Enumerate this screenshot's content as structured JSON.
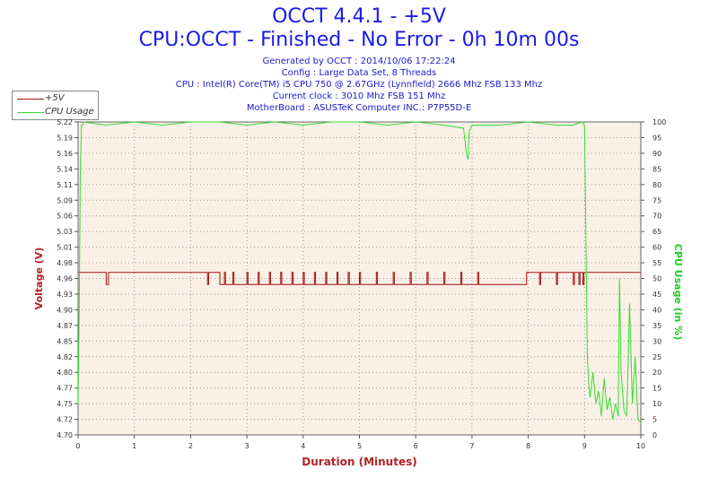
{
  "header": {
    "title": "OCCT 4.4.1 - +5V",
    "subtitle": "CPU:OCCT - Finished - No Error - 0h 10m 00s",
    "info_lines": [
      "Generated by OCCT : 2014/10/06 17:22:24",
      "Config : Large Data Set, 8 Threads",
      "CPU : Intel(R) Core(TM) i5 CPU 750 @ 2.67GHz (Lynnfield) 2666 Mhz FSB 133 Mhz",
      "Current clock : 3010 Mhz FSB 151 Mhz",
      "MotherBoard : ASUSTeK Computer INC.: P7P55D-E"
    ]
  },
  "legend": [
    {
      "label": "+5V",
      "color": "#a01010"
    },
    {
      "label": "CPU Usage",
      "color": "#33dd33"
    }
  ],
  "chart_data": {
    "type": "line",
    "xlabel": "Duration (Minutes)",
    "ylabel": "Voltage (V)",
    "y2label": "CPU Usage (in %)",
    "xlim": [
      0,
      10
    ],
    "ylim": [
      4.7,
      5.22
    ],
    "y2lim": [
      0,
      100
    ],
    "x_ticks": [
      "0",
      "1",
      "2",
      "3",
      "4",
      "5",
      "6",
      "7",
      "8",
      "9",
      "10"
    ],
    "y_ticks": [
      "4.70",
      "4.72",
      "4.75",
      "4.77",
      "4.80",
      "4.82",
      "4.85",
      "4.87",
      "4.90",
      "4.93",
      "4.96",
      "4.98",
      "5.01",
      "5.03",
      "5.06",
      "5.09",
      "5.11",
      "5.14",
      "5.16",
      "5.19",
      "5.22"
    ],
    "y2_ticks": [
      "0",
      "5",
      "10",
      "15",
      "20",
      "25",
      "30",
      "35",
      "40",
      "45",
      "50",
      "55",
      "60",
      "65",
      "70",
      "75",
      "80",
      "85",
      "90",
      "95",
      "100"
    ],
    "grid": true,
    "colors": {
      "voltage": "#a01010",
      "cpu": "#33dd33",
      "plot_bg": "#faf0e6",
      "axis_red": "#b22222",
      "axis_green": "#22cc22",
      "text_blue": "#1a1ae6"
    },
    "series": [
      {
        "name": "+5V",
        "axis": "left",
        "x": [
          0,
          0.49,
          0.5,
          0.52,
          0.54,
          2.28,
          2.3,
          2.32,
          2.5,
          2.52,
          2.6,
          2.62,
          2.75,
          2.77,
          3.0,
          3.02,
          3.2,
          3.22,
          3.4,
          3.42,
          3.6,
          3.62,
          3.8,
          3.82,
          4.0,
          4.02,
          4.2,
          4.22,
          4.4,
          4.42,
          4.6,
          4.62,
          4.8,
          4.82,
          5.0,
          5.02,
          5.3,
          5.32,
          5.6,
          5.62,
          5.9,
          5.92,
          6.2,
          6.22,
          6.5,
          6.52,
          6.8,
          6.82,
          7.1,
          7.12,
          7.4,
          7.42,
          7.6,
          7.62,
          7.95,
          7.97,
          8.2,
          8.22,
          8.5,
          8.52,
          8.8,
          8.82,
          8.9,
          8.92,
          8.97,
          8.99,
          10
        ],
        "values": [
          4.97,
          4.97,
          4.95,
          4.95,
          4.97,
          4.97,
          4.95,
          4.97,
          4.97,
          4.95,
          4.97,
          4.95,
          4.97,
          4.95,
          4.97,
          4.95,
          4.97,
          4.95,
          4.97,
          4.95,
          4.97,
          4.95,
          4.97,
          4.95,
          4.97,
          4.95,
          4.97,
          4.95,
          4.97,
          4.95,
          4.97,
          4.95,
          4.97,
          4.95,
          4.97,
          4.95,
          4.97,
          4.95,
          4.97,
          4.95,
          4.97,
          4.95,
          4.97,
          4.95,
          4.97,
          4.95,
          4.97,
          4.95,
          4.97,
          4.95,
          4.95,
          4.95,
          4.95,
          4.95,
          4.95,
          4.97,
          4.95,
          4.97,
          4.95,
          4.97,
          4.95,
          4.97,
          4.95,
          4.97,
          4.95,
          4.97,
          4.97
        ]
      },
      {
        "name": "CPU Usage",
        "axis": "right",
        "x": [
          0,
          0.02,
          0.04,
          0.06,
          0.08,
          0.1,
          0.5,
          1.0,
          1.5,
          2.0,
          2.5,
          3.0,
          3.5,
          4.0,
          4.5,
          5.0,
          5.5,
          6.0,
          6.5,
          6.85,
          6.9,
          6.93,
          6.95,
          7.0,
          7.5,
          8.0,
          8.5,
          8.8,
          8.95,
          9.0,
          9.02,
          9.05,
          9.08,
          9.1,
          9.15,
          9.2,
          9.25,
          9.3,
          9.35,
          9.4,
          9.45,
          9.5,
          9.55,
          9.6,
          9.62,
          9.65,
          9.7,
          9.75,
          9.8,
          9.85,
          9.9,
          9.95,
          10
        ],
        "values": [
          10,
          40,
          85,
          99,
          99,
          100,
          99,
          100,
          99,
          100,
          100,
          99,
          100,
          99,
          100,
          100,
          99,
          100,
          99,
          98,
          90,
          88,
          97,
          99,
          99,
          100,
          99,
          99,
          100,
          99,
          70,
          25,
          15,
          12,
          20,
          10,
          14,
          6,
          18,
          8,
          12,
          5,
          10,
          6,
          50,
          20,
          8,
          6,
          42,
          10,
          25,
          5,
          4
        ]
      }
    ]
  }
}
